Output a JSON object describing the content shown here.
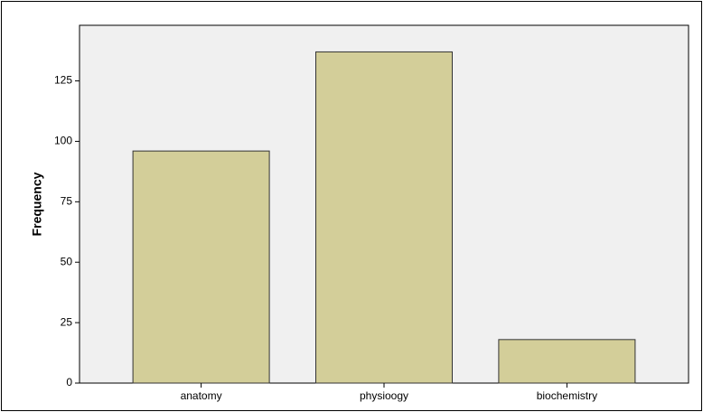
{
  "chart_data": {
    "type": "bar",
    "y_label": "Frequency",
    "categories": [
      "anatomy",
      "physioogy",
      "biochemistry"
    ],
    "values": [
      96,
      137,
      18
    ],
    "color": "#d3ce99",
    "ylim": [
      0,
      148
    ],
    "yticks": [
      0,
      25,
      50,
      75,
      100,
      125
    ],
    "grid": false
  }
}
